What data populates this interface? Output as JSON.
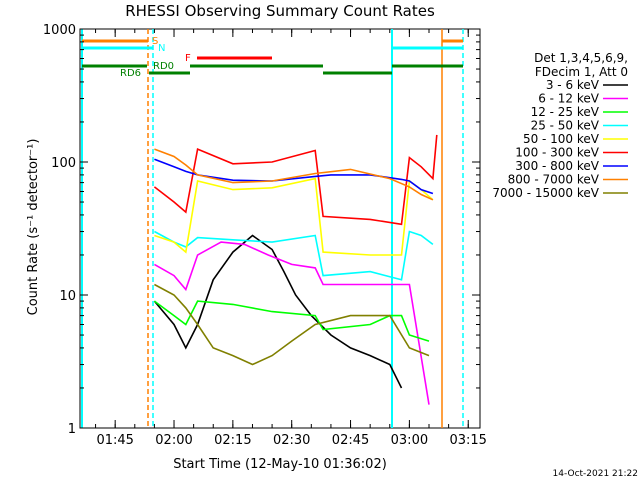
{
  "chart_data": {
    "type": "line",
    "title": "RHESSI Observing Summary Count Rates",
    "xlabel": "Start Time (12-May-10 01:36:02)",
    "ylabel": "Count Rate (s⁻¹ detector⁻¹)",
    "y_scale": "log",
    "ylim": [
      1,
      1000
    ],
    "xlim": [
      "01:36:02",
      "03:18:00"
    ],
    "x_ticks": [
      "01:45",
      "02:00",
      "02:15",
      "02:30",
      "02:45",
      "03:00",
      "03:15"
    ],
    "y_ticks": [
      "1",
      "10",
      "100",
      "1000"
    ],
    "timestamp": "14-Oct-2021 21:22",
    "legend": {
      "header1": "Det 1,3,4,5,6,9,",
      "header2": "FDecim 1, Att 0",
      "placement": "right"
    },
    "flags": [
      {
        "label": "S",
        "color": "#ff8000"
      },
      {
        "label": "N",
        "color": "#00ffff"
      },
      {
        "label": "F",
        "color": "#ff0000"
      },
      {
        "label": "RD0",
        "color": "#008000"
      },
      {
        "label": "RD6",
        "color": "#008000"
      }
    ],
    "series": [
      {
        "name": "3 - 6 keV",
        "color": "#000000",
        "x": [
          "01:55:00",
          "02:00:00",
          "02:03:00",
          "02:06:00",
          "02:10:00",
          "02:15:00",
          "02:20:00",
          "02:25:00",
          "02:28:00",
          "02:31:00",
          "02:35:00",
          "02:40:00",
          "02:45:00",
          "02:50:00",
          "02:55:00",
          "02:58:00"
        ],
        "values": [
          9,
          6,
          4,
          6,
          13,
          21,
          28,
          22,
          15,
          10,
          7,
          5,
          4,
          3.5,
          3,
          2
        ]
      },
      {
        "name": "6 - 12 keV",
        "color": "#ff00ff",
        "x": [
          "01:55:00",
          "02:00:00",
          "02:03:00",
          "02:06:00",
          "02:12:00",
          "02:18:00",
          "02:24:00",
          "02:30:00",
          "02:36:00",
          "02:38:00",
          "02:45:00",
          "02:55:00",
          "03:00:00",
          "03:05:00"
        ],
        "values": [
          17,
          14,
          11,
          20,
          25,
          24,
          20,
          17,
          16,
          12,
          12,
          12,
          12,
          1.5
        ]
      },
      {
        "name": "12 - 25 keV",
        "color": "#00ff00",
        "x": [
          "01:55:00",
          "02:00:00",
          "02:03:00",
          "02:06:00",
          "02:15:00",
          "02:25:00",
          "02:36:00",
          "02:38:00",
          "02:50:00",
          "02:55:00",
          "02:58:00",
          "03:00:00",
          "03:05:00"
        ],
        "values": [
          9,
          7,
          6,
          9,
          8.5,
          7.5,
          7,
          5.5,
          6,
          7,
          7,
          5,
          4.5
        ]
      },
      {
        "name": "25 - 50 keV",
        "color": "#00ffff",
        "x": [
          "01:55:00",
          "02:00:00",
          "02:03:00",
          "02:06:00",
          "02:15:00",
          "02:25:00",
          "02:36:00",
          "02:38:00",
          "02:50:00",
          "02:58:00",
          "03:00:00",
          "03:03:00",
          "03:06:00"
        ],
        "values": [
          30,
          25,
          23,
          27,
          26,
          25,
          28,
          14,
          15,
          13,
          30,
          28,
          24
        ]
      },
      {
        "name": "50 - 100 keV",
        "color": "#ffff00",
        "x": [
          "01:55:00",
          "02:00:00",
          "02:03:00",
          "02:06:00",
          "02:15:00",
          "02:25:00",
          "02:36:00",
          "02:38:00",
          "02:50:00",
          "02:58:00",
          "03:00:00",
          "03:03:00",
          "03:06:00"
        ],
        "values": [
          28,
          25,
          21,
          72,
          62,
          64,
          75,
          21,
          20,
          20,
          72,
          62,
          52
        ]
      },
      {
        "name": "100 - 300 keV",
        "color": "#ff0000",
        "x": [
          "01:55:00",
          "02:00:00",
          "02:03:00",
          "02:06:00",
          "02:15:00",
          "02:25:00",
          "02:36:00",
          "02:38:00",
          "02:50:00",
          "02:58:00",
          "03:00:00",
          "03:03:00",
          "03:06:00",
          "03:07:00"
        ],
        "values": [
          65,
          50,
          42,
          125,
          97,
          100,
          122,
          39,
          37,
          34,
          108,
          92,
          75,
          160
        ]
      },
      {
        "name": "300 - 800 keV",
        "color": "#0000ff",
        "x": [
          "01:55:00",
          "02:00:00",
          "02:03:00",
          "02:06:00",
          "02:15:00",
          "02:25:00",
          "02:36:00",
          "02:40:00",
          "02:50:00",
          "02:58:00",
          "03:00:00",
          "03:03:00",
          "03:06:00"
        ],
        "values": [
          105,
          92,
          85,
          80,
          73,
          72,
          78,
          80,
          80,
          74,
          72,
          62,
          58
        ]
      },
      {
        "name": "800 - 7000 keV",
        "color": "#ff8000",
        "x": [
          "01:55:00",
          "02:00:00",
          "02:03:00",
          "02:06:00",
          "02:15:00",
          "02:25:00",
          "02:36:00",
          "02:45:00",
          "02:55:00",
          "03:00:00",
          "03:03:00",
          "03:06:00"
        ],
        "values": [
          125,
          110,
          95,
          80,
          70,
          72,
          82,
          88,
          75,
          65,
          57,
          52
        ]
      },
      {
        "name": "7000 - 15000 keV",
        "color": "#808000",
        "x": [
          "01:55:00",
          "02:00:00",
          "02:03:00",
          "02:06:00",
          "02:10:00",
          "02:15:00",
          "02:20:00",
          "02:25:00",
          "02:30:00",
          "02:36:00",
          "02:45:00",
          "02:55:00",
          "03:00:00",
          "03:05:00"
        ],
        "values": [
          12,
          10,
          8,
          6,
          4,
          3.5,
          3,
          3.5,
          4.5,
          6,
          7,
          7,
          4,
          3.5
        ]
      }
    ]
  }
}
